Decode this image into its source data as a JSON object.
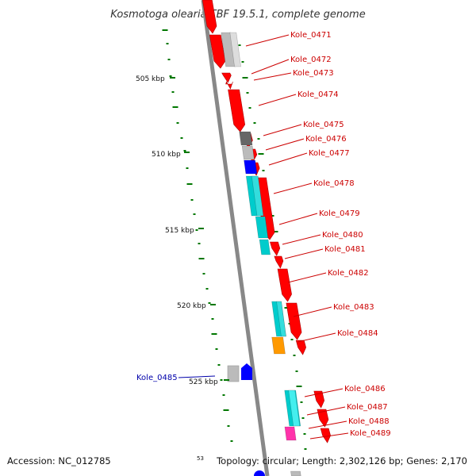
{
  "title": "Kosmotoga olearia TBF 19.5.1, complete genome",
  "accession": "Accession: NC_012785",
  "topology": "Topology: circular; Length: 2,302,126 bp; Genes: 2,170",
  "scale_fragment": "53",
  "colors": {
    "gene_red": "#ff0000",
    "label_red": "#cc0000",
    "label_blue": "#0000aa",
    "backbone": "#888888",
    "gc_green": "#007700",
    "light_gray": "#bbbbbb",
    "dark_gray": "#666666",
    "blue": "#0000ff",
    "cyan": "#00cccc",
    "orange": "#ff9900",
    "magenta": "#ff33aa"
  },
  "kbp_ticks": [
    "505 kbp",
    "510 kbp",
    "515 kbp",
    "520 kbp",
    "525 kbp"
  ],
  "gene_labels": [
    {
      "name": "Kole_0471"
    },
    {
      "name": "Kole_0472"
    },
    {
      "name": "Kole_0473"
    },
    {
      "name": "Kole_0474"
    },
    {
      "name": "Kole_0475"
    },
    {
      "name": "Kole_0476"
    },
    {
      "name": "Kole_0477"
    },
    {
      "name": "Kole_0478"
    },
    {
      "name": "Kole_0479"
    },
    {
      "name": "Kole_0480"
    },
    {
      "name": "Kole_0481"
    },
    {
      "name": "Kole_0482"
    },
    {
      "name": "Kole_0483"
    },
    {
      "name": "Kole_0484"
    },
    {
      "name": "Kole_0485"
    },
    {
      "name": "Kole_0486"
    },
    {
      "name": "Kole_0487"
    },
    {
      "name": "Kole_0488"
    },
    {
      "name": "Kole_0489"
    }
  ]
}
